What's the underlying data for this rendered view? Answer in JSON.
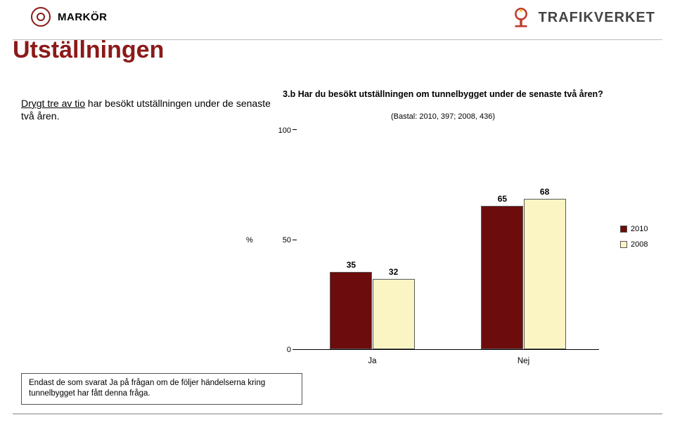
{
  "branding": {
    "markor_text": "MARKÖR",
    "trafikverket_text": "TRAFIKVERKET"
  },
  "page_title": "Utställningen",
  "intro": {
    "underlined": "Drygt tre av tio",
    "rest": " har besökt utställningen under de senaste två åren."
  },
  "chart": {
    "type": "bar",
    "title": "3.b Har du besökt utställningen om tunnelbygget under de senaste två åren?",
    "subtitle": "(Bastal: 2010, 397; 2008, 436)",
    "y_axis": {
      "label": "%",
      "ticks": [
        0,
        50,
        100
      ],
      "lim": [
        0,
        100
      ]
    },
    "categories": [
      "Ja",
      "Nej"
    ],
    "series": [
      {
        "name": "2010",
        "color": "#6d0c0c",
        "values": [
          35,
          65
        ]
      },
      {
        "name": "2008",
        "color": "#fbf5c3",
        "values": [
          32,
          68
        ]
      }
    ],
    "bar_border": "#5a5a5a",
    "bar_width_rel": 0.28,
    "label_fontsize": 12,
    "title_fontsize": 12.5,
    "background_color": "#ffffff"
  },
  "note": "Endast de som svarat Ja på frågan om de följer händelserna kring tunnelbygget har fått denna fråga."
}
